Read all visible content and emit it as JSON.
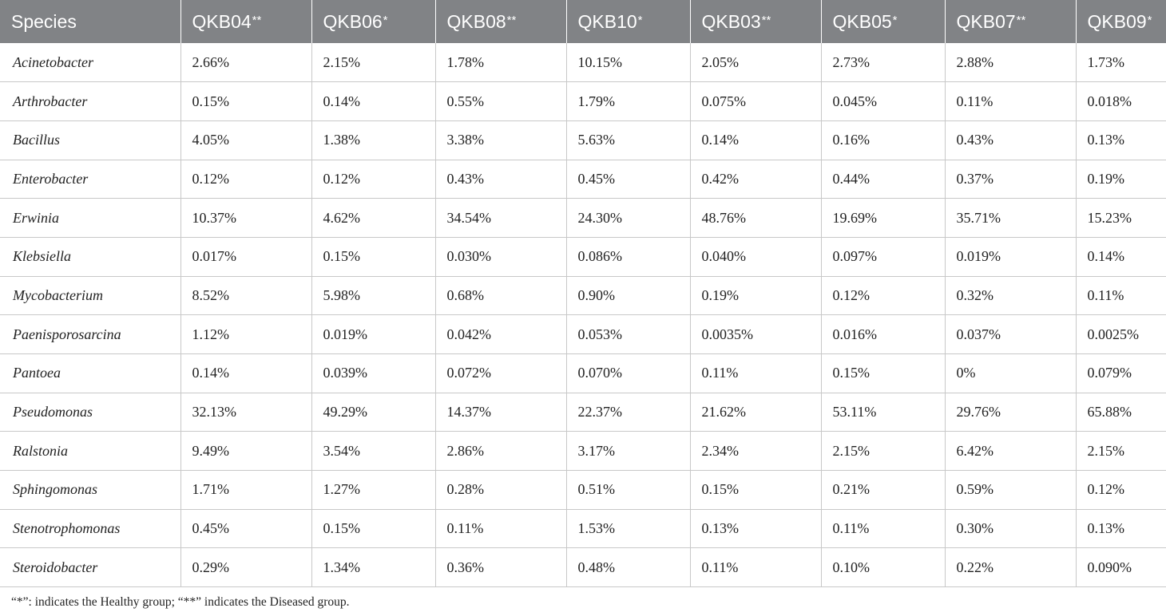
{
  "table": {
    "headers": [
      {
        "label": "Species",
        "mark": ""
      },
      {
        "label": "QKB04",
        "mark": "**"
      },
      {
        "label": "QKB06",
        "mark": "*"
      },
      {
        "label": "QKB08",
        "mark": "**"
      },
      {
        "label": "QKB10",
        "mark": "*"
      },
      {
        "label": "QKB03",
        "mark": "**"
      },
      {
        "label": "QKB05",
        "mark": "*"
      },
      {
        "label": "QKB07",
        "mark": "**"
      },
      {
        "label": "QKB09",
        "mark": "*"
      }
    ],
    "rows": [
      {
        "species": "Acinetobacter",
        "values": [
          "2.66%",
          "2.15%",
          "1.78%",
          "10.15%",
          "2.05%",
          "2.73%",
          "2.88%",
          "1.73%"
        ]
      },
      {
        "species": "Arthrobacter",
        "values": [
          "0.15%",
          "0.14%",
          "0.55%",
          "1.79%",
          "0.075%",
          "0.045%",
          "0.11%",
          "0.018%"
        ]
      },
      {
        "species": "Bacillus",
        "values": [
          "4.05%",
          "1.38%",
          "3.38%",
          "5.63%",
          "0.14%",
          "0.16%",
          "0.43%",
          "0.13%"
        ]
      },
      {
        "species": "Enterobacter",
        "values": [
          "0.12%",
          "0.12%",
          "0.43%",
          "0.45%",
          "0.42%",
          "0.44%",
          "0.37%",
          "0.19%"
        ]
      },
      {
        "species": "Erwinia",
        "values": [
          "10.37%",
          "4.62%",
          "34.54%",
          "24.30%",
          "48.76%",
          "19.69%",
          "35.71%",
          "15.23%"
        ]
      },
      {
        "species": "Klebsiella",
        "values": [
          "0.017%",
          "0.15%",
          "0.030%",
          "0.086%",
          "0.040%",
          "0.097%",
          "0.019%",
          "0.14%"
        ]
      },
      {
        "species": "Mycobacterium",
        "values": [
          "8.52%",
          "5.98%",
          "0.68%",
          "0.90%",
          "0.19%",
          "0.12%",
          "0.32%",
          "0.11%"
        ]
      },
      {
        "species": "Paenisporosarcina",
        "values": [
          "1.12%",
          "0.019%",
          "0.042%",
          "0.053%",
          "0.0035%",
          "0.016%",
          "0.037%",
          "0.0025%"
        ]
      },
      {
        "species": "Pantoea",
        "values": [
          "0.14%",
          "0.039%",
          "0.072%",
          "0.070%",
          "0.11%",
          "0.15%",
          "0%",
          "0.079%"
        ]
      },
      {
        "species": "Pseudomonas",
        "values": [
          "32.13%",
          "49.29%",
          "14.37%",
          "22.37%",
          "21.62%",
          "53.11%",
          "29.76%",
          "65.88%"
        ]
      },
      {
        "species": "Ralstonia",
        "values": [
          "9.49%",
          "3.54%",
          "2.86%",
          "3.17%",
          "2.34%",
          "2.15%",
          "6.42%",
          "2.15%"
        ]
      },
      {
        "species": "Sphingomonas",
        "values": [
          "1.71%",
          "1.27%",
          "0.28%",
          "0.51%",
          "0.15%",
          "0.21%",
          "0.59%",
          "0.12%"
        ]
      },
      {
        "species": "Stenotrophomonas",
        "values": [
          "0.45%",
          "0.15%",
          "0.11%",
          "1.53%",
          "0.13%",
          "0.11%",
          "0.30%",
          "0.13%"
        ]
      },
      {
        "species": "Steroidobacter",
        "values": [
          "0.29%",
          "1.34%",
          "0.36%",
          "0.48%",
          "0.11%",
          "0.10%",
          "0.22%",
          "0.090%"
        ]
      }
    ]
  },
  "footnote": "“*”: indicates the Healthy group; “**” indicates the Diseased group.",
  "colors": {
    "header_background": "#818386",
    "header_text": "#ffffff",
    "grid_lines": "#c8c8c8",
    "body_text": "#222222"
  }
}
